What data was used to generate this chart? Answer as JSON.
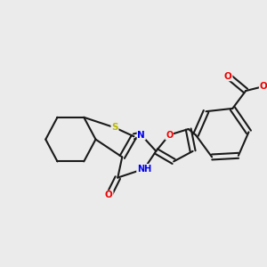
{
  "background_color": "#ebebeb",
  "bond_color": "#1a1a1a",
  "atom_colors": {
    "S": "#b8b800",
    "N": "#0000ee",
    "O": "#ee0000",
    "NH": "#0000ee",
    "H": "#009999",
    "C": "#1a1a1a"
  },
  "figsize": [
    3.0,
    3.0
  ],
  "dpi": 100,
  "xlim": [
    0,
    10
  ],
  "ylim": [
    0,
    10
  ]
}
